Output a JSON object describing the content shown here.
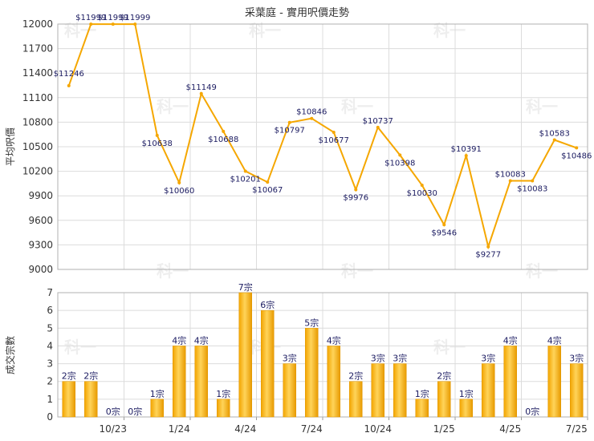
{
  "chart_data": [
    {
      "type": "line",
      "title": "采葉庭 - 實用呎價走勢",
      "ylabel": "平均呎價",
      "ylim": [
        9000,
        12000
      ],
      "yticks": [
        9000,
        9300,
        9600,
        9900,
        10200,
        10500,
        10800,
        11100,
        11400,
        11700,
        12000
      ],
      "grid": true,
      "line_color": "#f5a700",
      "series": [
        {
          "values": [
            11246,
            11999,
            11999,
            11999,
            10638,
            10060,
            11149,
            10688,
            10201,
            10067,
            10797,
            10846,
            10677,
            9976,
            10737,
            10398,
            10030,
            9546,
            10391,
            9277,
            10083,
            10083,
            10583,
            10486
          ],
          "labels": [
            "$11246",
            "$11999",
            "$11999",
            "$11999",
            "$10638",
            "$10060",
            "$11149",
            "$10688",
            "$10201",
            "$10067",
            "$10797",
            "$10846",
            "$10677",
            "$9976",
            "$10737",
            "$10398",
            "$10030",
            "$9546",
            "$10391",
            "$9277",
            "$10083",
            "$10083",
            "$10583",
            "$10486"
          ]
        }
      ]
    },
    {
      "type": "bar",
      "ylabel": "成交宗數",
      "ylim": [
        0,
        7
      ],
      "yticks": [
        0,
        1,
        2,
        3,
        4,
        5,
        6,
        7
      ],
      "grid": true,
      "bar_color": "#f5a700",
      "values": [
        2,
        2,
        0,
        0,
        1,
        4,
        4,
        1,
        7,
        6,
        3,
        5,
        4,
        2,
        3,
        3,
        1,
        2,
        1,
        3,
        4,
        0,
        4,
        3
      ],
      "labels": [
        "2宗",
        "2宗",
        "0宗",
        "0宗",
        "1宗",
        "4宗",
        "4宗",
        "1宗",
        "7宗",
        "6宗",
        "3宗",
        "5宗",
        "4宗",
        "2宗",
        "3宗",
        "3宗",
        "1宗",
        "2宗",
        "1宗",
        "3宗",
        "4宗",
        "0宗",
        "4宗",
        "3宗"
      ],
      "xticks": [
        {
          "label": "10/23",
          "index": 2
        },
        {
          "label": "1/24",
          "index": 5
        },
        {
          "label": "4/24",
          "index": 8
        },
        {
          "label": "7/24",
          "index": 11
        },
        {
          "label": "10/24",
          "index": 14
        },
        {
          "label": "1/25",
          "index": 17
        },
        {
          "label": "4/25",
          "index": 20
        },
        {
          "label": "7/25",
          "index": 23
        }
      ]
    }
  ],
  "watermark": "科一"
}
